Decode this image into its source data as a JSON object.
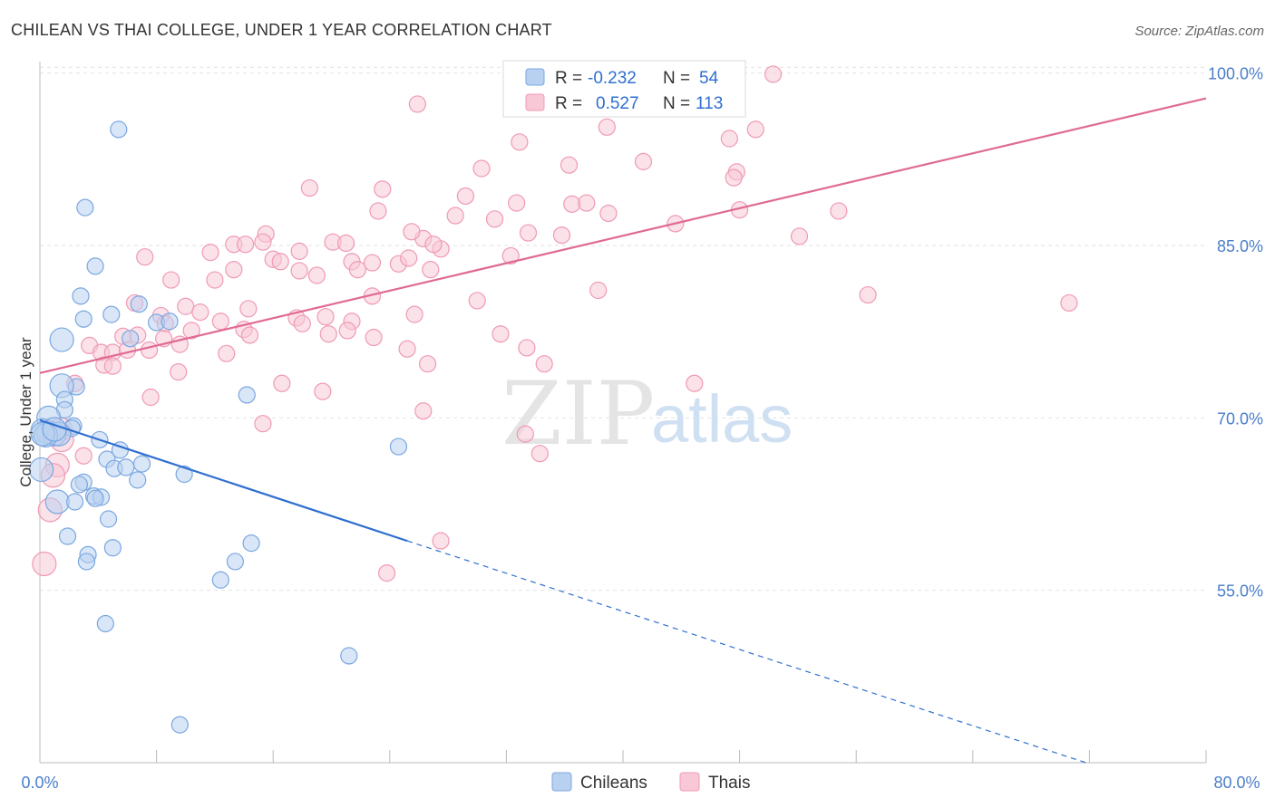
{
  "chart_data": {
    "type": "scatter",
    "title": "CHILEAN VS THAI COLLEGE, UNDER 1 YEAR CORRELATION CHART",
    "source": "Source: ZipAtlas.com",
    "ylabel": "College, Under 1 year",
    "xlabel": "",
    "xlim": [
      0,
      80
    ],
    "ylim": [
      40,
      101
    ],
    "x_tick_labels": [
      "0.0%",
      "80.0%"
    ],
    "y_ticks": [
      55,
      70,
      85,
      100
    ],
    "y_tick_labels": [
      "55.0%",
      "70.0%",
      "85.0%",
      "100.0%"
    ],
    "grid": true,
    "watermark": {
      "zip": "ZIP",
      "atlas": "atlas"
    },
    "legend": [
      {
        "r_label": "R =",
        "r_value": "-0.232",
        "n_label": "N =",
        "n_value": "54"
      },
      {
        "r_label": "R =",
        "r_value": "0.527",
        "n_label": "N =",
        "n_value": "113"
      }
    ],
    "series": [
      {
        "name": "Chileans",
        "color": "#7aa7e0",
        "fill": "#b9d1f0",
        "line_color": "#2f6fd0",
        "trend": {
          "x0": 0,
          "y0": 69.8,
          "x1": 25.2,
          "y1": 59.3,
          "dash_x1": 72,
          "dash_y1": 39.9
        },
        "points": [
          [
            5.4,
            95.1
          ],
          [
            3.1,
            88.3
          ],
          [
            3.8,
            83.2
          ],
          [
            2.8,
            80.6
          ],
          [
            3.0,
            78.6
          ],
          [
            4.9,
            79.0
          ],
          [
            6.8,
            79.9
          ],
          [
            8.0,
            78.3
          ],
          [
            8.9,
            78.4
          ],
          [
            1.5,
            76.8
          ],
          [
            6.2,
            76.9
          ],
          [
            2.5,
            72.7
          ],
          [
            1.5,
            72.8
          ],
          [
            1.7,
            71.6
          ],
          [
            1.7,
            70.7
          ],
          [
            0.6,
            70.0
          ],
          [
            2.3,
            69.3
          ],
          [
            2.2,
            69.1
          ],
          [
            0.2,
            68.9
          ],
          [
            0.6,
            68.7
          ],
          [
            1.0,
            68.6
          ],
          [
            1.3,
            68.6
          ],
          [
            0.4,
            68.5
          ],
          [
            0.2,
            68.6
          ],
          [
            4.1,
            68.1
          ],
          [
            14.2,
            72.0
          ],
          [
            24.6,
            67.5
          ],
          [
            4.6,
            66.4
          ],
          [
            5.1,
            65.6
          ],
          [
            5.9,
            65.7
          ],
          [
            6.7,
            64.6
          ],
          [
            9.9,
            65.1
          ],
          [
            3.0,
            64.4
          ],
          [
            2.7,
            64.2
          ],
          [
            3.7,
            63.2
          ],
          [
            4.2,
            63.1
          ],
          [
            1.2,
            62.7
          ],
          [
            2.4,
            62.7
          ],
          [
            4.7,
            61.2
          ],
          [
            1.9,
            59.7
          ],
          [
            3.3,
            58.1
          ],
          [
            5.0,
            58.7
          ],
          [
            14.5,
            59.1
          ],
          [
            3.2,
            57.5
          ],
          [
            13.4,
            57.5
          ],
          [
            12.4,
            55.9
          ],
          [
            4.5,
            52.1
          ],
          [
            21.2,
            49.3
          ],
          [
            9.6,
            43.3
          ],
          [
            0.1,
            65.5
          ],
          [
            3.8,
            63.0
          ],
          [
            7.0,
            66.0
          ],
          [
            1.0,
            69.0
          ],
          [
            5.5,
            67.2
          ]
        ]
      },
      {
        "name": "Thais",
        "color": "#f09ab5",
        "fill": "#f8c8d6",
        "line_color": "#e06a94",
        "trend": {
          "x0": 0,
          "y0": 73.9,
          "x1": 80,
          "y1": 97.8
        },
        "points": [
          [
            50.3,
            99.9
          ],
          [
            25.9,
            97.3
          ],
          [
            38.9,
            95.3
          ],
          [
            49.1,
            95.1
          ],
          [
            47.3,
            94.3
          ],
          [
            32.9,
            94.0
          ],
          [
            41.4,
            92.3
          ],
          [
            36.3,
            92.0
          ],
          [
            30.3,
            91.7
          ],
          [
            47.8,
            91.4
          ],
          [
            47.6,
            90.9
          ],
          [
            18.5,
            90.0
          ],
          [
            23.5,
            89.9
          ],
          [
            29.2,
            89.3
          ],
          [
            32.7,
            88.7
          ],
          [
            36.5,
            88.6
          ],
          [
            37.5,
            88.7
          ],
          [
            48.0,
            88.1
          ],
          [
            54.8,
            88.0
          ],
          [
            23.2,
            88.0
          ],
          [
            39.0,
            87.8
          ],
          [
            28.5,
            87.6
          ],
          [
            31.2,
            87.3
          ],
          [
            43.6,
            86.9
          ],
          [
            33.5,
            86.1
          ],
          [
            35.8,
            85.9
          ],
          [
            15.5,
            86.0
          ],
          [
            26.3,
            85.6
          ],
          [
            13.3,
            85.1
          ],
          [
            14.1,
            85.1
          ],
          [
            15.3,
            85.3
          ],
          [
            20.1,
            85.3
          ],
          [
            21.0,
            85.2
          ],
          [
            11.7,
            84.4
          ],
          [
            17.8,
            84.5
          ],
          [
            27.5,
            84.7
          ],
          [
            7.2,
            84.0
          ],
          [
            16.0,
            83.8
          ],
          [
            16.5,
            83.6
          ],
          [
            21.4,
            83.6
          ],
          [
            24.6,
            83.4
          ],
          [
            25.3,
            83.9
          ],
          [
            32.3,
            84.1
          ],
          [
            13.3,
            82.9
          ],
          [
            17.8,
            82.8
          ],
          [
            21.8,
            82.9
          ],
          [
            19.0,
            82.4
          ],
          [
            26.8,
            82.9
          ],
          [
            9.0,
            82.0
          ],
          [
            12.0,
            82.0
          ],
          [
            22.8,
            83.5
          ],
          [
            38.3,
            81.1
          ],
          [
            22.8,
            80.6
          ],
          [
            30.0,
            80.2
          ],
          [
            6.5,
            80.0
          ],
          [
            10.0,
            79.7
          ],
          [
            14.3,
            79.5
          ],
          [
            11.0,
            79.2
          ],
          [
            8.3,
            78.9
          ],
          [
            17.6,
            78.7
          ],
          [
            19.6,
            78.8
          ],
          [
            21.4,
            78.4
          ],
          [
            18.0,
            78.2
          ],
          [
            21.1,
            77.6
          ],
          [
            12.4,
            78.4
          ],
          [
            8.6,
            78.2
          ],
          [
            10.4,
            77.6
          ],
          [
            14.0,
            77.7
          ],
          [
            6.7,
            77.2
          ],
          [
            5.7,
            77.1
          ],
          [
            8.5,
            76.9
          ],
          [
            14.4,
            77.2
          ],
          [
            19.8,
            77.3
          ],
          [
            22.9,
            77.0
          ],
          [
            31.6,
            77.3
          ],
          [
            25.7,
            79.0
          ],
          [
            9.6,
            76.4
          ],
          [
            3.4,
            76.3
          ],
          [
            4.2,
            75.7
          ],
          [
            5.0,
            75.7
          ],
          [
            6.0,
            75.9
          ],
          [
            12.8,
            75.6
          ],
          [
            25.2,
            76.0
          ],
          [
            33.4,
            76.1
          ],
          [
            4.4,
            74.6
          ],
          [
            5.0,
            74.5
          ],
          [
            9.5,
            74.0
          ],
          [
            26.6,
            74.7
          ],
          [
            34.6,
            74.7
          ],
          [
            16.6,
            73.0
          ],
          [
            44.9,
            73.0
          ],
          [
            7.6,
            71.8
          ],
          [
            19.4,
            72.3
          ],
          [
            26.3,
            70.6
          ],
          [
            15.3,
            69.5
          ],
          [
            1.4,
            69.0
          ],
          [
            1.5,
            68.1
          ],
          [
            33.3,
            68.6
          ],
          [
            34.3,
            66.9
          ],
          [
            3.0,
            66.7
          ],
          [
            1.2,
            65.9
          ],
          [
            0.9,
            65.0
          ],
          [
            0.7,
            62.0
          ],
          [
            27.5,
            59.3
          ],
          [
            23.8,
            56.5
          ],
          [
            0.3,
            57.3
          ],
          [
            52.1,
            85.8
          ],
          [
            25.5,
            86.2
          ],
          [
            27.0,
            85.1
          ],
          [
            56.8,
            80.7
          ],
          [
            70.6,
            80.0
          ],
          [
            2.4,
            73.0
          ],
          [
            7.5,
            75.9
          ]
        ]
      }
    ],
    "bottom_legend": [
      "Chileans",
      "Thais"
    ]
  }
}
